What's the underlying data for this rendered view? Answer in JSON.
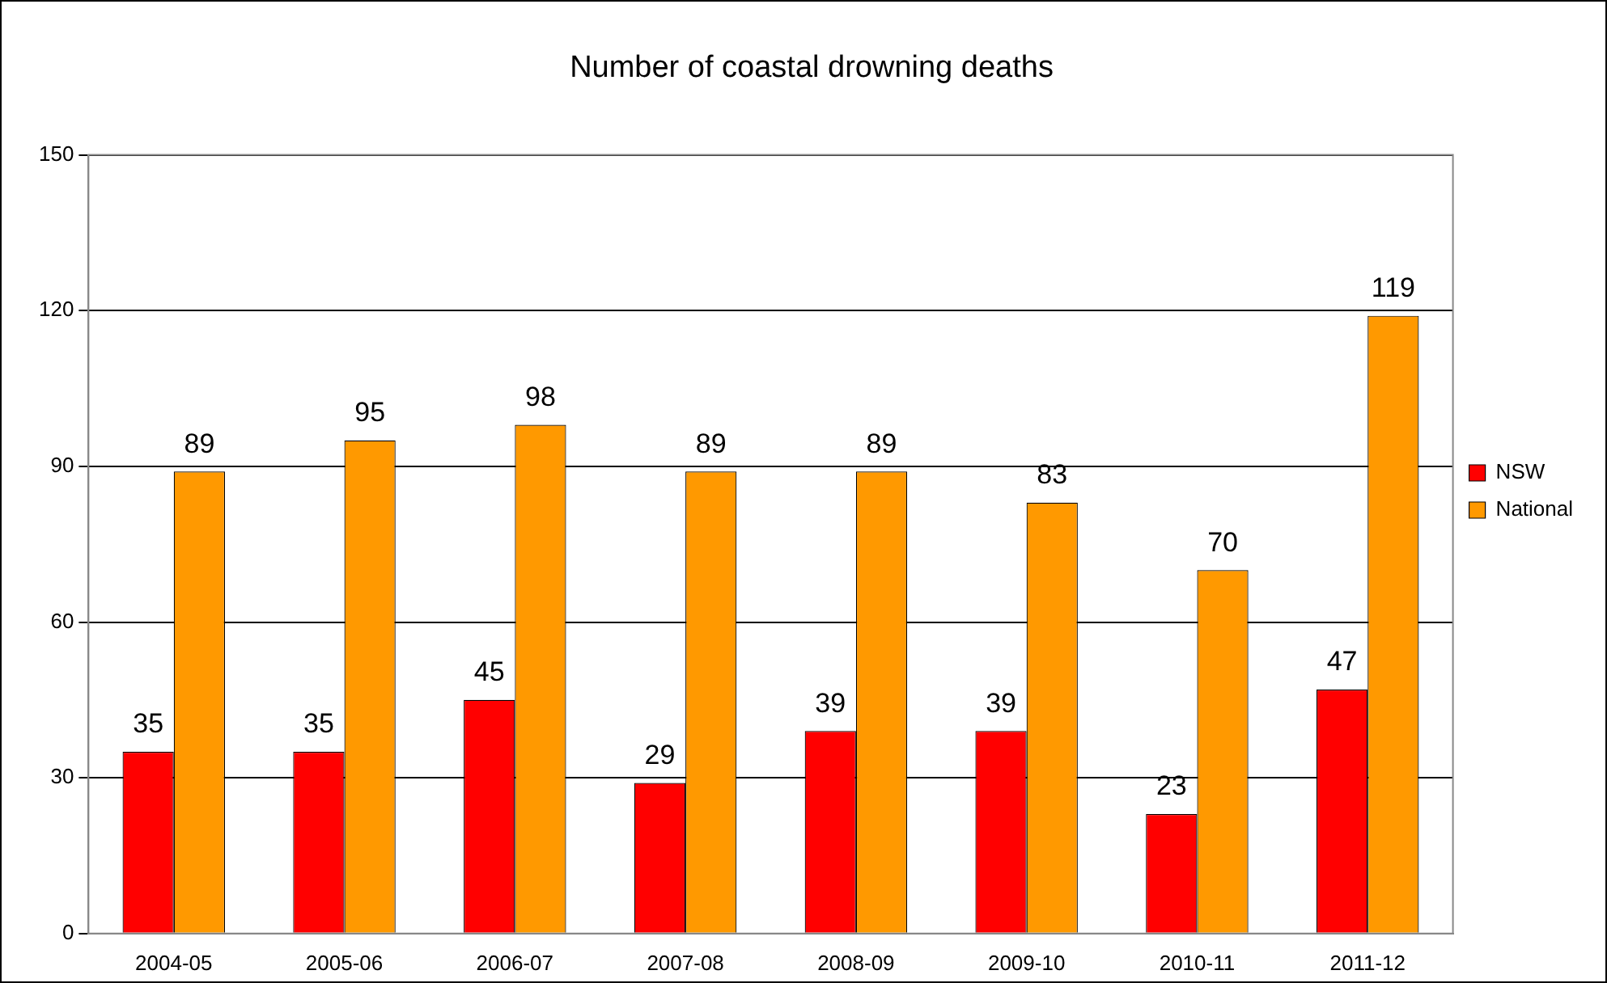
{
  "chart_data": {
    "type": "bar",
    "title": "Number of coastal drowning deaths",
    "categories": [
      "2004-05",
      "2005-06",
      "2006-07",
      "2007-08",
      "2008-09",
      "2009-10",
      "2010-11",
      "2011-12"
    ],
    "series": [
      {
        "name": "NSW",
        "color": "#ff0000",
        "values": [
          35,
          35,
          45,
          29,
          39,
          39,
          23,
          47
        ]
      },
      {
        "name": "National",
        "color": "#ff9900",
        "values": [
          89,
          95,
          98,
          89,
          89,
          83,
          70,
          119
        ]
      }
    ],
    "ylim": [
      0,
      150
    ],
    "yticks": [
      0,
      30,
      60,
      90,
      120,
      150
    ],
    "grid": "y",
    "legend": "right",
    "data_labels": true
  }
}
